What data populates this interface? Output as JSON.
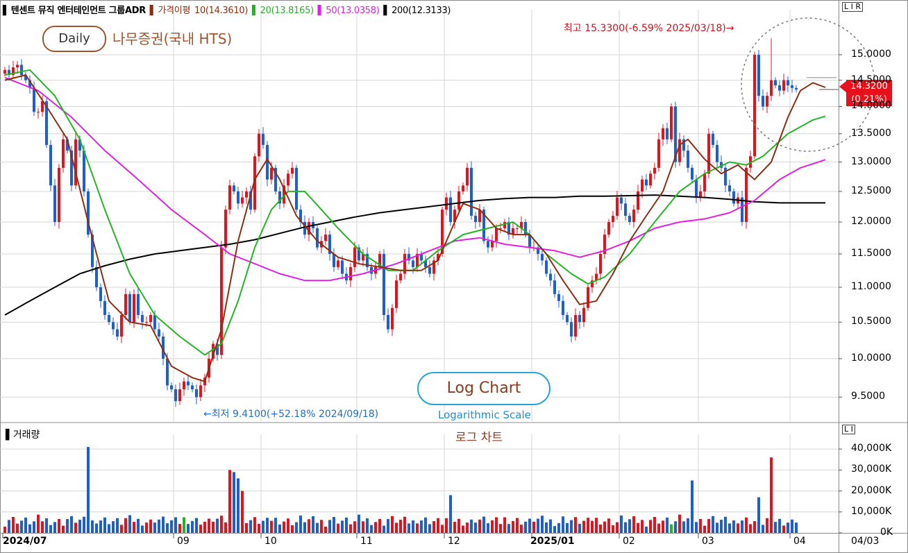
{
  "header": {
    "marker": "▌",
    "stock_name": "텐센트 뮤직 엔터테인먼트 그룹ADR",
    "price_legend": "가격이평",
    "ma_entries": [
      {
        "text": "10(14.3610)",
        "color": "#8b2e0f"
      },
      {
        "text": "20(13.8165)",
        "color": "#22b522"
      },
      {
        "text": "50(13.0358)",
        "color": "#e020e0"
      },
      {
        "text": "200(12.3133)",
        "color": "#000000"
      }
    ]
  },
  "badges": {
    "daily": "Daily",
    "broker": "나무증권(국내 HTS)",
    "log_chart": "Log Chart",
    "log_scale_en": "Logarithmic Scale",
    "log_scale_ko": "로그 차트",
    "price_panel_buttons": "L I R",
    "volume_panel_buttons": "L I"
  },
  "price_tag": {
    "price": "14.3200",
    "change": "(0.21%)"
  },
  "annotations": {
    "high": "최고 15.3300(-6.59% 2025/03/18)→",
    "low": "←최저 9.4100(+52.18% 2024/09/18)"
  },
  "volume_panel": {
    "title": "거래량"
  },
  "colors": {
    "up": "#e8101a",
    "down": "#1c5fd4",
    "flat": "#22b522",
    "ma10": "#8b2e0f",
    "ma20": "#22b522",
    "ma50": "#e020e0",
    "ma200": "#000000",
    "grid": "#d6d6d6",
    "annotation_low": "#1d6fc8",
    "annotation_high": "#d0101a"
  },
  "chart_data": {
    "type": "candlestick",
    "scale": "log",
    "grid": true,
    "price_axis": {
      "ticks": [
        9.5,
        10.0,
        10.5,
        11.0,
        11.5,
        12.0,
        12.5,
        13.0,
        13.5,
        14.0,
        14.5,
        15.0
      ],
      "tick_labels": [
        "9.5000",
        "10.0000",
        "10.5000",
        "11.0000",
        "11.5000",
        "12.0000",
        "12.5000",
        "13.0000",
        "13.5000",
        "14.0000",
        "14.5000",
        "15.0000"
      ],
      "range": [
        9.2,
        15.9
      ]
    },
    "volume_axis": {
      "ticks": [
        0,
        10000,
        20000,
        30000,
        40000
      ],
      "tick_labels": [
        "0K",
        "10,000K",
        "20,000K",
        "30,000K",
        "40,000K"
      ],
      "range": [
        0,
        47000
      ]
    },
    "x_axis": {
      "labels": [
        {
          "text": "2024/07",
          "i": 0,
          "bold": true
        },
        {
          "text": "09",
          "i": 41,
          "bold": false
        },
        {
          "text": "10",
          "i": 62,
          "bold": false
        },
        {
          "text": "11",
          "i": 85,
          "bold": false
        },
        {
          "text": "12",
          "i": 106,
          "bold": false
        },
        {
          "text": "2025/01",
          "i": 127,
          "bold": true
        },
        {
          "text": "02",
          "i": 148,
          "bold": false
        },
        {
          "text": "03",
          "i": 167,
          "bold": false
        },
        {
          "text": "04",
          "i": 189,
          "bold": false
        }
      ],
      "right_label": "04/03"
    },
    "close": [
      14.7,
      14.6,
      14.75,
      14.8,
      14.6,
      14.5,
      14.35,
      13.9,
      13.9,
      14.1,
      13.3,
      12.6,
      12.0,
      12.9,
      13.4,
      13.2,
      12.6,
      13.4,
      13.2,
      12.5,
      11.8,
      11.3,
      11.0,
      10.8,
      10.6,
      10.5,
      10.4,
      10.3,
      10.6,
      10.9,
      10.5,
      10.9,
      10.6,
      10.5,
      10.5,
      10.6,
      10.4,
      10.3,
      10.0,
      9.65,
      9.6,
      9.45,
      9.6,
      9.7,
      9.65,
      9.6,
      9.5,
      9.65,
      9.75,
      10.0,
      10.2,
      10.05,
      11.6,
      12.2,
      12.6,
      12.5,
      12.3,
      12.4,
      12.5,
      12.2,
      13.1,
      13.5,
      13.3,
      12.7,
      12.9,
      12.5,
      12.3,
      12.6,
      12.8,
      12.9,
      12.2,
      12.0,
      11.8,
      12.0,
      11.9,
      11.6,
      11.7,
      11.8,
      11.5,
      11.3,
      11.4,
      11.2,
      11.1,
      11.3,
      11.6,
      11.4,
      11.5,
      11.3,
      11.2,
      11.3,
      11.5,
      10.6,
      10.4,
      10.7,
      11.1,
      11.2,
      11.5,
      11.4,
      11.3,
      11.5,
      11.4,
      11.3,
      11.2,
      11.4,
      11.5,
      12.2,
      12.4,
      12.0,
      12.2,
      12.5,
      12.6,
      12.9,
      12.1,
      12.0,
      12.2,
      11.7,
      11.6,
      11.7,
      11.9,
      11.9,
      12.0,
      11.8,
      11.9,
      11.9,
      12.0,
      11.8,
      11.6,
      11.6,
      11.5,
      11.4,
      11.2,
      11.1,
      10.9,
      10.8,
      10.6,
      10.5,
      10.3,
      10.6,
      10.5,
      10.7,
      11.0,
      11.1,
      11.2,
      11.5,
      11.8,
      12.0,
      12.1,
      12.4,
      12.3,
      12.1,
      12.0,
      12.2,
      12.5,
      12.7,
      12.6,
      12.8,
      12.9,
      13.4,
      13.6,
      13.4,
      14.0,
      13.0,
      13.4,
      13.2,
      12.9,
      12.7,
      12.4,
      12.5,
      12.8,
      13.5,
      13.3,
      13.0,
      12.9,
      12.6,
      12.5,
      12.3,
      12.4,
      12.0,
      12.9,
      13.1,
      15.0,
      14.2,
      14.0,
      14.2,
      14.5,
      14.4,
      14.3,
      14.5,
      14.4,
      14.35,
      14.32
    ],
    "ma10_anchors": [
      [
        0,
        14.5
      ],
      [
        5,
        14.6
      ],
      [
        10,
        14.0
      ],
      [
        15,
        13.4
      ],
      [
        20,
        12.0
      ],
      [
        25,
        10.8
      ],
      [
        30,
        10.5
      ],
      [
        35,
        10.45
      ],
      [
        40,
        9.9
      ],
      [
        45,
        9.75
      ],
      [
        48,
        9.7
      ],
      [
        52,
        10.4
      ],
      [
        56,
        11.7
      ],
      [
        60,
        12.7
      ],
      [
        63,
        13.05
      ],
      [
        66,
        12.7
      ],
      [
        70,
        12.1
      ],
      [
        75,
        11.7
      ],
      [
        80,
        11.45
      ],
      [
        85,
        11.35
      ],
      [
        90,
        11.3
      ],
      [
        95,
        11.25
      ],
      [
        100,
        11.25
      ],
      [
        104,
        11.4
      ],
      [
        108,
        12.0
      ],
      [
        110,
        12.3
      ],
      [
        114,
        12.2
      ],
      [
        118,
        11.9
      ],
      [
        122,
        11.8
      ],
      [
        126,
        11.8
      ],
      [
        130,
        11.5
      ],
      [
        134,
        11.1
      ],
      [
        138,
        10.75
      ],
      [
        142,
        10.8
      ],
      [
        146,
        11.2
      ],
      [
        150,
        11.7
      ],
      [
        154,
        12.1
      ],
      [
        158,
        12.5
      ],
      [
        162,
        13.3
      ],
      [
        164,
        13.4
      ],
      [
        168,
        13.05
      ],
      [
        172,
        12.8
      ],
      [
        176,
        12.95
      ],
      [
        180,
        12.7
      ],
      [
        184,
        13.0
      ],
      [
        188,
        13.8
      ],
      [
        191,
        14.3
      ],
      [
        194,
        14.45
      ],
      [
        197,
        14.36
      ]
    ],
    "ma20_anchors": [
      [
        0,
        14.6
      ],
      [
        6,
        14.7
      ],
      [
        12,
        14.2
      ],
      [
        18,
        13.4
      ],
      [
        24,
        12.2
      ],
      [
        30,
        11.2
      ],
      [
        36,
        10.6
      ],
      [
        42,
        10.3
      ],
      [
        48,
        10.05
      ],
      [
        52,
        10.2
      ],
      [
        56,
        10.8
      ],
      [
        60,
        11.6
      ],
      [
        64,
        12.2
      ],
      [
        68,
        12.5
      ],
      [
        72,
        12.5
      ],
      [
        76,
        12.2
      ],
      [
        80,
        11.9
      ],
      [
        86,
        11.5
      ],
      [
        92,
        11.25
      ],
      [
        98,
        11.25
      ],
      [
        104,
        11.55
      ],
      [
        110,
        11.8
      ],
      [
        116,
        11.9
      ],
      [
        122,
        12.0
      ],
      [
        126,
        11.8
      ],
      [
        130,
        11.5
      ],
      [
        136,
        11.2
      ],
      [
        140,
        11.05
      ],
      [
        144,
        11.15
      ],
      [
        150,
        11.5
      ],
      [
        156,
        12.0
      ],
      [
        162,
        12.5
      ],
      [
        168,
        12.8
      ],
      [
        174,
        13.0
      ],
      [
        178,
        12.95
      ],
      [
        182,
        13.1
      ],
      [
        188,
        13.5
      ],
      [
        194,
        13.75
      ],
      [
        197,
        13.82
      ]
    ],
    "ma50_anchors": [
      [
        0,
        14.55
      ],
      [
        8,
        14.3
      ],
      [
        16,
        13.8
      ],
      [
        24,
        13.2
      ],
      [
        32,
        12.7
      ],
      [
        40,
        12.2
      ],
      [
        48,
        11.8
      ],
      [
        54,
        11.5
      ],
      [
        60,
        11.35
      ],
      [
        66,
        11.2
      ],
      [
        72,
        11.1
      ],
      [
        78,
        11.1
      ],
      [
        86,
        11.2
      ],
      [
        94,
        11.35
      ],
      [
        102,
        11.55
      ],
      [
        108,
        11.7
      ],
      [
        114,
        11.75
      ],
      [
        120,
        11.65
      ],
      [
        126,
        11.6
      ],
      [
        132,
        11.55
      ],
      [
        138,
        11.45
      ],
      [
        144,
        11.55
      ],
      [
        150,
        11.7
      ],
      [
        156,
        11.9
      ],
      [
        162,
        12.0
      ],
      [
        168,
        12.05
      ],
      [
        174,
        12.15
      ],
      [
        180,
        12.35
      ],
      [
        186,
        12.7
      ],
      [
        191,
        12.9
      ],
      [
        197,
        13.04
      ]
    ],
    "ma200_anchors": [
      [
        0,
        10.6
      ],
      [
        6,
        10.8
      ],
      [
        12,
        11.0
      ],
      [
        18,
        11.2
      ],
      [
        24,
        11.32
      ],
      [
        30,
        11.42
      ],
      [
        36,
        11.5
      ],
      [
        42,
        11.55
      ],
      [
        48,
        11.6
      ],
      [
        54,
        11.65
      ],
      [
        60,
        11.72
      ],
      [
        66,
        11.82
      ],
      [
        72,
        11.92
      ],
      [
        78,
        12.0
      ],
      [
        84,
        12.08
      ],
      [
        90,
        12.15
      ],
      [
        96,
        12.2
      ],
      [
        102,
        12.25
      ],
      [
        108,
        12.3
      ],
      [
        114,
        12.35
      ],
      [
        120,
        12.38
      ],
      [
        126,
        12.4
      ],
      [
        132,
        12.4
      ],
      [
        138,
        12.42
      ],
      [
        144,
        12.42
      ],
      [
        150,
        12.43
      ],
      [
        156,
        12.44
      ],
      [
        162,
        12.42
      ],
      [
        168,
        12.4
      ],
      [
        174,
        12.37
      ],
      [
        180,
        12.33
      ],
      [
        186,
        12.31
      ],
      [
        192,
        12.31
      ],
      [
        197,
        12.31
      ]
    ],
    "volume_spikes": [
      [
        20,
        41000
      ],
      [
        54,
        30000
      ],
      [
        55,
        29000
      ],
      [
        56,
        26000
      ],
      [
        57,
        20000
      ],
      [
        107,
        18000
      ],
      [
        165,
        25000
      ],
      [
        181,
        17000
      ],
      [
        184,
        36000
      ]
    ],
    "high": {
      "value": 15.33,
      "date": "2025/03/18",
      "i": 184
    },
    "low": {
      "value": 9.41,
      "date": "2024/09/18",
      "i": 46
    }
  }
}
